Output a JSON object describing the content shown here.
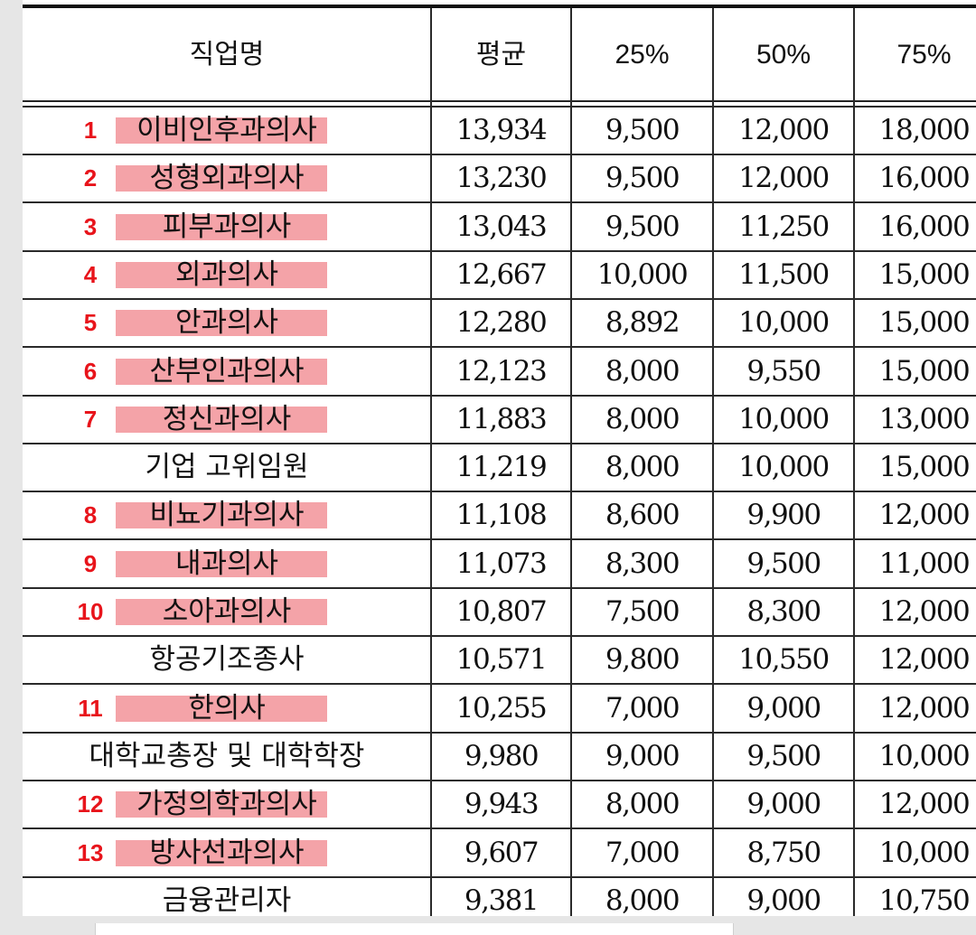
{
  "table": {
    "headers": {
      "job": "직업명",
      "mean": "평균",
      "p25": "25%",
      "p50": "50%",
      "p75": "75%"
    },
    "rows": [
      {
        "rank": "1",
        "job": "이비인후과의사",
        "mean": "13,934",
        "p25": "9,500",
        "p50": "12,000",
        "p75": "18,000",
        "highlight": true
      },
      {
        "rank": "2",
        "job": "성형외과의사",
        "mean": "13,230",
        "p25": "9,500",
        "p50": "12,000",
        "p75": "16,000",
        "highlight": true
      },
      {
        "rank": "3",
        "job": "피부과의사",
        "mean": "13,043",
        "p25": "9,500",
        "p50": "11,250",
        "p75": "16,000",
        "highlight": true
      },
      {
        "rank": "4",
        "job": "외과의사",
        "mean": "12,667",
        "p25": "10,000",
        "p50": "11,500",
        "p75": "15,000",
        "highlight": true
      },
      {
        "rank": "5",
        "job": "안과의사",
        "mean": "12,280",
        "p25": "8,892",
        "p50": "10,000",
        "p75": "15,000",
        "highlight": true
      },
      {
        "rank": "6",
        "job": "산부인과의사",
        "mean": "12,123",
        "p25": "8,000",
        "p50": "9,550",
        "p75": "15,000",
        "highlight": true
      },
      {
        "rank": "7",
        "job": "정신과의사",
        "mean": "11,883",
        "p25": "8,000",
        "p50": "10,000",
        "p75": "13,000",
        "highlight": true
      },
      {
        "rank": "",
        "job": "기업 고위임원",
        "mean": "11,219",
        "p25": "8,000",
        "p50": "10,000",
        "p75": "15,000",
        "highlight": false
      },
      {
        "rank": "8",
        "job": "비뇨기과의사",
        "mean": "11,108",
        "p25": "8,600",
        "p50": "9,900",
        "p75": "12,000",
        "highlight": true
      },
      {
        "rank": "9",
        "job": "내과의사",
        "mean": "11,073",
        "p25": "8,300",
        "p50": "9,500",
        "p75": "11,000",
        "highlight": true
      },
      {
        "rank": "10",
        "job": "소아과의사",
        "mean": "10,807",
        "p25": "7,500",
        "p50": "8,300",
        "p75": "12,000",
        "highlight": true
      },
      {
        "rank": "",
        "job": "항공기조종사",
        "mean": "10,571",
        "p25": "9,800",
        "p50": "10,550",
        "p75": "12,000",
        "highlight": false
      },
      {
        "rank": "11",
        "job": "한의사",
        "mean": "10,255",
        "p25": "7,000",
        "p50": "9,000",
        "p75": "12,000",
        "highlight": true
      },
      {
        "rank": "",
        "job": "대학교총장 및 대학학장",
        "mean": "9,980",
        "p25": "9,000",
        "p50": "9,500",
        "p75": "10,000",
        "highlight": false
      },
      {
        "rank": "12",
        "job": "가정의학과의사",
        "mean": "9,943",
        "p25": "8,000",
        "p50": "9,000",
        "p75": "12,000",
        "highlight": true
      },
      {
        "rank": "13",
        "job": "방사선과의사",
        "mean": "9,607",
        "p25": "7,000",
        "p50": "8,750",
        "p75": "10,000",
        "highlight": true
      },
      {
        "rank": "",
        "job": "금융관리자",
        "mean": "9,381",
        "p25": "8,000",
        "p50": "9,000",
        "p75": "10,750",
        "highlight": false
      }
    ]
  },
  "colors": {
    "rank_text": "#e8141b",
    "highlight": "#f4a3a8",
    "rule": "#2a2a2a"
  }
}
